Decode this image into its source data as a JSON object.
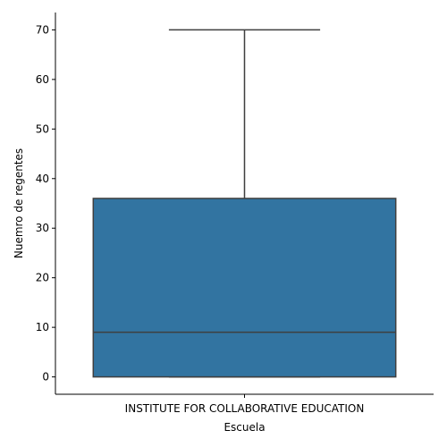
{
  "chart_data": {
    "type": "box",
    "xlabel": "Escuela",
    "ylabel": "Nuemro de regentes",
    "categories": [
      "INSTITUTE FOR COLLABORATIVE EDUCATION"
    ],
    "boxes": [
      {
        "category": "INSTITUTE FOR COLLABORATIVE EDUCATION",
        "min": 0,
        "q1": 0,
        "median": 9,
        "q3": 36,
        "max": 70
      }
    ],
    "ylim": [
      -3.5,
      73.5
    ],
    "yticks": [
      0,
      10,
      20,
      30,
      40,
      50,
      60,
      70
    ],
    "grid": false,
    "legend": "none",
    "colors": {
      "box_fill": "#3274a1",
      "box_edge": "#3f3f3f",
      "axis": "#000000"
    }
  }
}
